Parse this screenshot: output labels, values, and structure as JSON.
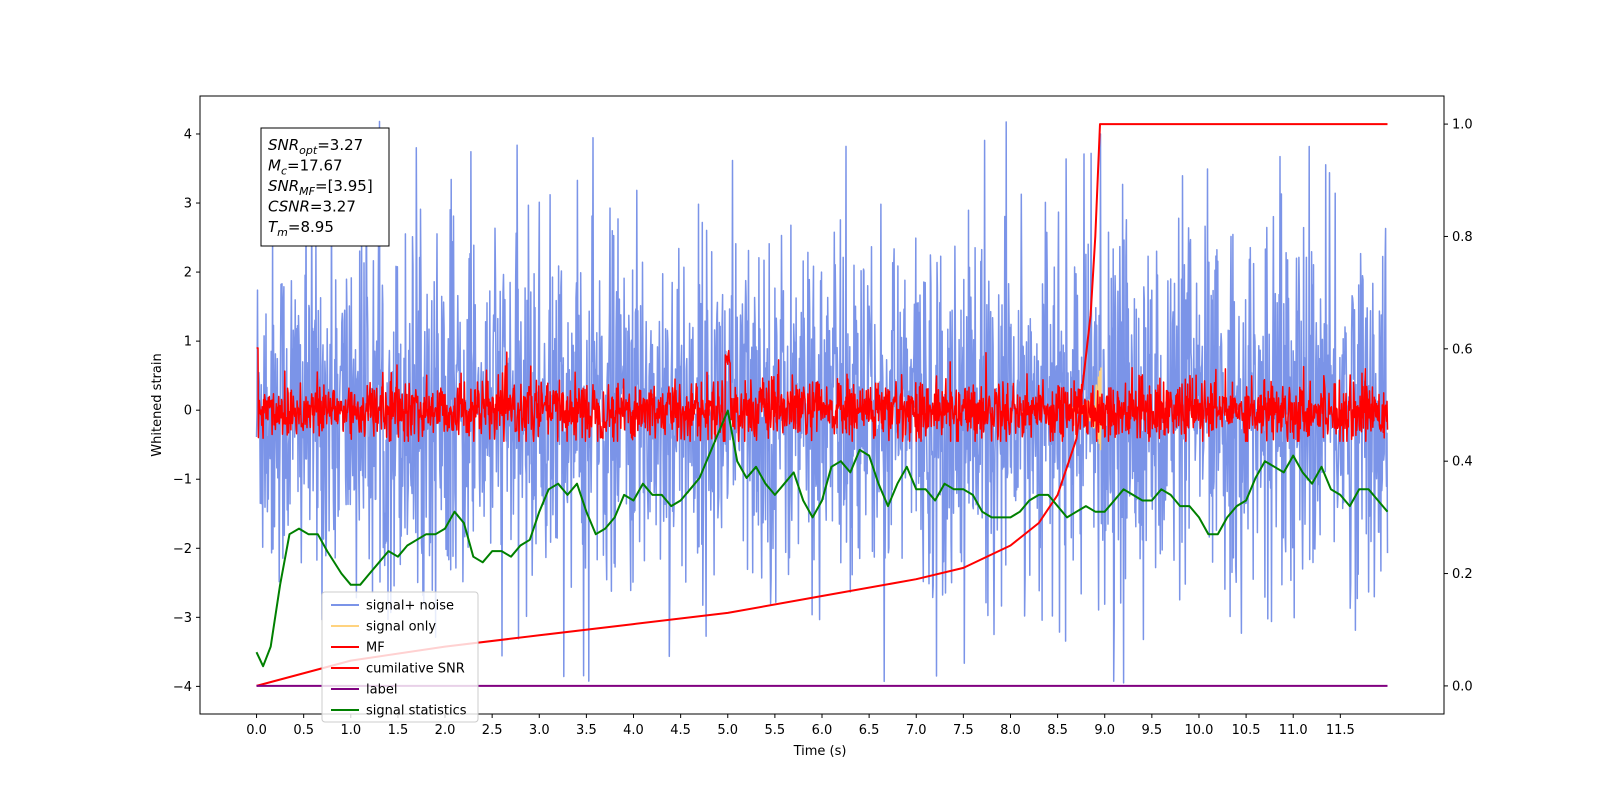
{
  "chart_data": {
    "type": "line",
    "xlabel": "Time (s)",
    "ylabel": "Whitened strain",
    "xlim": [
      -0.6,
      12.6
    ],
    "ylim": [
      -4.4,
      4.55
    ],
    "y2lim": [
      -0.05,
      1.05
    ],
    "x_ticks": [
      "0.0",
      "0.5",
      "1.0",
      "1.5",
      "2.0",
      "2.5",
      "3.0",
      "3.5",
      "4.0",
      "4.5",
      "5.0",
      "5.5",
      "6.0",
      "6.5",
      "7.0",
      "7.5",
      "8.0",
      "8.5",
      "9.0",
      "9.5",
      "10.0",
      "10.5",
      "11.0",
      "11.5"
    ],
    "y_ticks": [
      "4",
      "3",
      "2",
      "1",
      "0",
      "−1",
      "−2",
      "−3",
      "−4"
    ],
    "y2_ticks": [
      "1.0",
      "0.8",
      "0.6",
      "0.4",
      "0.2",
      "0.0"
    ],
    "annotation": [
      {
        "base": "SNR",
        "sub": "opt",
        "value": "=3.27"
      },
      {
        "base": "M",
        "sub": "c",
        "value": "=17.67"
      },
      {
        "base": "SNR",
        "sub": "MF",
        "value": "=[3.95]"
      },
      {
        "base": "CSNR",
        "sub": "",
        "value": "=3.27"
      },
      {
        "base": "T",
        "sub": "m",
        "value": "=8.95"
      }
    ],
    "legend_position": "lower-left",
    "series": [
      {
        "name": "signal+ noise",
        "color": "#7b94e8",
        "axis": "left",
        "description_range": [
          -3.9,
          4.2
        ]
      },
      {
        "name": "signal only",
        "color": "#ffd37f",
        "axis": "left"
      },
      {
        "name": "MF",
        "color": "#ff0000",
        "axis": "left"
      },
      {
        "name": "cumilative SNR",
        "color": "#ff0000",
        "axis": "right",
        "x": [
          0.0,
          1.0,
          2.0,
          3.0,
          4.0,
          5.0,
          6.0,
          7.0,
          7.5,
          8.0,
          8.3,
          8.5,
          8.7,
          8.85,
          8.9,
          8.95,
          12.0
        ],
        "y": [
          0.0,
          0.045,
          0.07,
          0.09,
          0.11,
          0.13,
          0.16,
          0.19,
          0.21,
          0.25,
          0.29,
          0.34,
          0.44,
          0.66,
          0.8,
          1.0,
          1.0
        ]
      },
      {
        "name": "label",
        "color": "#800080",
        "axis": "right",
        "x": [
          0.0,
          12.0
        ],
        "y": [
          0.0,
          0.0
        ]
      },
      {
        "name": "signal statistics",
        "color": "#008000",
        "axis": "right",
        "x": [
          0.0,
          0.07,
          0.15,
          0.25,
          0.35,
          0.45,
          0.55,
          0.65,
          0.75,
          0.9,
          1.0,
          1.1,
          1.2,
          1.3,
          1.4,
          1.5,
          1.6,
          1.7,
          1.8,
          1.9,
          2.0,
          2.1,
          2.2,
          2.3,
          2.4,
          2.5,
          2.6,
          2.7,
          2.8,
          2.9,
          3.0,
          3.1,
          3.2,
          3.3,
          3.4,
          3.5,
          3.6,
          3.7,
          3.8,
          3.9,
          4.0,
          4.1,
          4.2,
          4.3,
          4.4,
          4.5,
          4.6,
          4.7,
          4.8,
          4.9,
          5.0,
          5.1,
          5.2,
          5.3,
          5.4,
          5.5,
          5.6,
          5.7,
          5.8,
          5.9,
          6.0,
          6.1,
          6.2,
          6.3,
          6.4,
          6.5,
          6.6,
          6.7,
          6.8,
          6.9,
          7.0,
          7.1,
          7.2,
          7.3,
          7.4,
          7.5,
          7.6,
          7.7,
          7.8,
          7.9,
          8.0,
          8.1,
          8.2,
          8.3,
          8.4,
          8.5,
          8.6,
          8.7,
          8.8,
          8.9,
          9.0,
          9.1,
          9.2,
          9.3,
          9.4,
          9.5,
          9.6,
          9.7,
          9.8,
          9.9,
          10.0,
          10.1,
          10.2,
          10.3,
          10.4,
          10.5,
          10.6,
          10.7,
          10.8,
          10.9,
          11.0,
          11.1,
          11.2,
          11.3,
          11.4,
          11.5,
          11.6,
          11.7,
          11.8,
          11.9,
          12.0
        ],
        "y": [
          0.06,
          0.035,
          0.07,
          0.18,
          0.27,
          0.28,
          0.27,
          0.27,
          0.24,
          0.2,
          0.18,
          0.18,
          0.2,
          0.22,
          0.24,
          0.23,
          0.25,
          0.26,
          0.27,
          0.27,
          0.28,
          0.31,
          0.29,
          0.23,
          0.22,
          0.24,
          0.24,
          0.23,
          0.25,
          0.26,
          0.31,
          0.35,
          0.36,
          0.34,
          0.36,
          0.31,
          0.27,
          0.28,
          0.3,
          0.34,
          0.33,
          0.36,
          0.34,
          0.34,
          0.32,
          0.33,
          0.35,
          0.37,
          0.41,
          0.45,
          0.49,
          0.4,
          0.37,
          0.39,
          0.36,
          0.34,
          0.36,
          0.38,
          0.33,
          0.3,
          0.33,
          0.39,
          0.4,
          0.38,
          0.42,
          0.41,
          0.36,
          0.32,
          0.36,
          0.39,
          0.35,
          0.35,
          0.33,
          0.36,
          0.35,
          0.35,
          0.34,
          0.31,
          0.3,
          0.3,
          0.3,
          0.31,
          0.33,
          0.34,
          0.34,
          0.32,
          0.3,
          0.31,
          0.32,
          0.31,
          0.31,
          0.33,
          0.35,
          0.34,
          0.33,
          0.33,
          0.35,
          0.34,
          0.32,
          0.32,
          0.3,
          0.27,
          0.27,
          0.3,
          0.32,
          0.33,
          0.37,
          0.4,
          0.39,
          0.38,
          0.41,
          0.38,
          0.36,
          0.39,
          0.35,
          0.34,
          0.32,
          0.35,
          0.35,
          0.33,
          0.31
        ]
      }
    ]
  }
}
